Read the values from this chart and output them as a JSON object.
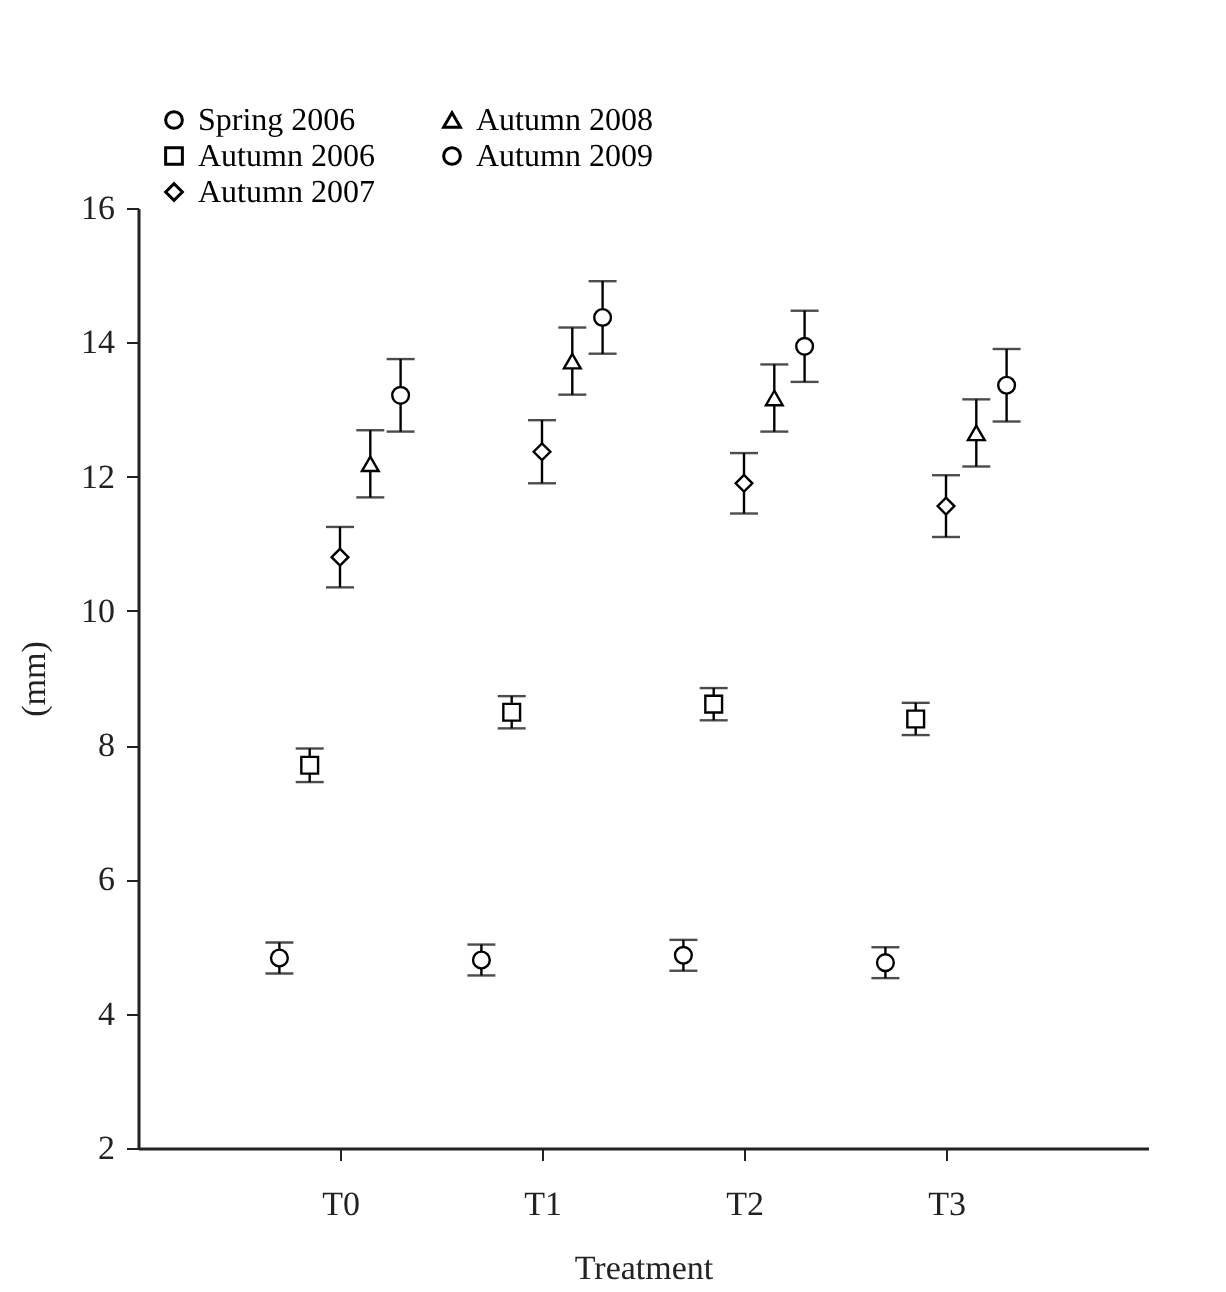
{
  "chart_data": {
    "type": "scatter",
    "xlabel": "Treatment",
    "ylabel": "(mm)",
    "categories": [
      "T0",
      "T1",
      "T2",
      "T3"
    ],
    "series": [
      {
        "name": "Spring 2006",
        "color": "#000000",
        "marker": "circle",
        "values": [
          4.83,
          4.8,
          4.87,
          4.76
        ],
        "errors": [
          0.23,
          0.23,
          0.23,
          0.23
        ]
      },
      {
        "name": "Autumn 2006",
        "color": "#000000",
        "marker": "square",
        "values": [
          7.7,
          8.49,
          8.61,
          8.39
        ],
        "errors": [
          0.25,
          0.24,
          0.24,
          0.24
        ]
      },
      {
        "name": "Autumn 2007",
        "color": "#000000",
        "marker": "diamond",
        "values": [
          10.8,
          12.37,
          11.9,
          11.56
        ],
        "errors": [
          0.45,
          0.47,
          0.45,
          0.46
        ]
      },
      {
        "name": "Autumn 2008",
        "color": "#000000",
        "marker": "triangle",
        "values": [
          12.19,
          13.72,
          13.17,
          12.65
        ],
        "errors": [
          0.5,
          0.5,
          0.5,
          0.5
        ]
      },
      {
        "name": "Autumn 2009",
        "color": "#000000",
        "marker": "circle",
        "values": [
          13.21,
          14.37,
          13.94,
          13.36
        ],
        "errors": [
          0.54,
          0.54,
          0.53,
          0.54
        ]
      }
    ],
    "ylim": [
      2,
      16
    ],
    "yticks": [
      2,
      4,
      6,
      8,
      10,
      12,
      14,
      16
    ],
    "grid": false,
    "legend": "top left"
  }
}
